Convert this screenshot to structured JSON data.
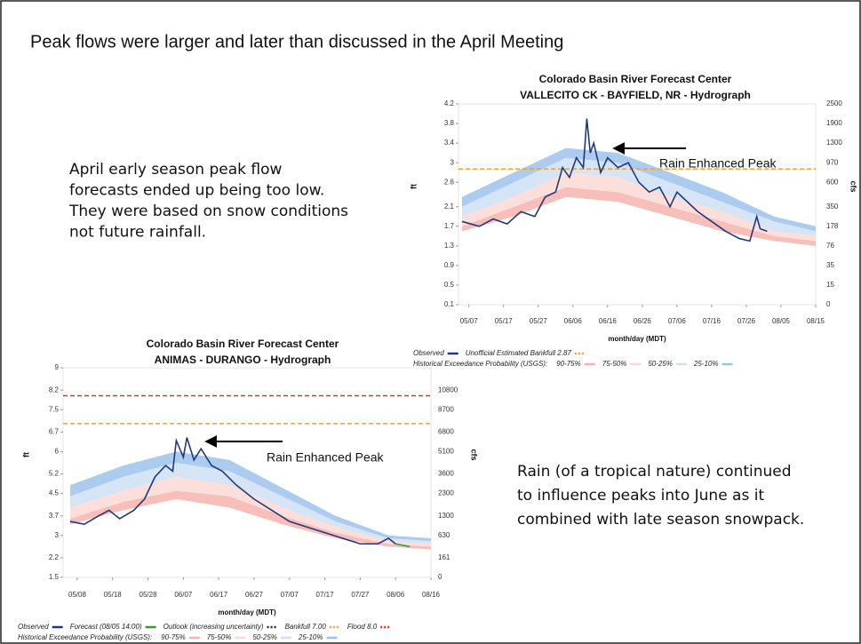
{
  "slide": {
    "title": "Peak flows were larger and later than discussed in the April Meeting",
    "left_note": [
      "April early season peak flow",
      "forecasts ended up being too low.",
      "They were based on snow conditions",
      "not future rainfall."
    ],
    "right_note": [
      "Rain (of a tropical nature) continued",
      "to influence peaks into June as it",
      "combined with late season snowpack."
    ]
  },
  "chart_data": [
    {
      "type": "line",
      "title": [
        "Colorado Basin River Forecast Center",
        "VALLECITO CK - BAYFIELD, NR - Hydrograph"
      ],
      "xlabel": "month/day (MDT)",
      "ylabel": "ft",
      "y2label": "cfs",
      "annotation": "Rain Enhanced Peak",
      "xlim": [
        "05/04",
        "08/15"
      ],
      "xticks": [
        "05/07",
        "05/17",
        "05/27",
        "06/06",
        "06/16",
        "06/26",
        "07/06",
        "07/16",
        "07/26",
        "08/05",
        "08/15"
      ],
      "ylim": [
        0.1,
        4.2
      ],
      "yticks": [
        4.2,
        3.8,
        3.4,
        3.0,
        2.6,
        2.1,
        1.7,
        1.3,
        0.9,
        0.5,
        0.1
      ],
      "y2ticks": [
        2500,
        1900,
        1300,
        970,
        600,
        350,
        178,
        76,
        35,
        15,
        0
      ],
      "series": [
        {
          "name": "Observed",
          "color": "#1f3a7a",
          "x": [
            "05/05",
            "05/10",
            "05/14",
            "05/18",
            "05/22",
            "05/26",
            "05/29",
            "06/01",
            "06/03",
            "06/05",
            "06/07",
            "06/09",
            "06/10",
            "06/11",
            "06/12",
            "06/14",
            "06/16",
            "06/19",
            "06/22",
            "06/25",
            "06/28",
            "07/01",
            "07/04",
            "07/06",
            "07/09",
            "07/12",
            "07/16",
            "07/20",
            "07/24",
            "07/27",
            "07/29",
            "07/30",
            "08/01"
          ],
          "values": [
            1.8,
            1.7,
            1.85,
            1.75,
            2.0,
            1.9,
            2.3,
            2.4,
            2.9,
            2.7,
            3.1,
            2.9,
            3.9,
            3.2,
            3.4,
            2.8,
            3.1,
            2.9,
            3.0,
            2.6,
            2.4,
            2.5,
            2.1,
            2.4,
            2.2,
            2.0,
            1.8,
            1.6,
            1.45,
            1.4,
            1.9,
            1.65,
            1.6
          ]
        }
      ],
      "thresholds": [
        {
          "name": "Unofficial Estimated Bankfull 2.87",
          "value": 2.87,
          "color": "#f0a030"
        }
      ],
      "legend_title": "Historical Exceedance Probability (USGS):",
      "bands_x": [
        "05/05",
        "05/20",
        "06/04",
        "06/19",
        "07/04",
        "07/19",
        "08/03",
        "08/15"
      ],
      "bands": [
        {
          "name": "90-75%",
          "color": "#f6b3ae",
          "low": [
            1.6,
            1.9,
            2.3,
            2.2,
            1.9,
            1.6,
            1.4,
            1.3
          ],
          "high": [
            1.7,
            2.1,
            2.5,
            2.4,
            2.1,
            1.8,
            1.5,
            1.4
          ]
        },
        {
          "name": "75-50%",
          "color": "#fbd9d4",
          "low": [
            1.7,
            2.1,
            2.5,
            2.4,
            2.1,
            1.8,
            1.5,
            1.4
          ],
          "high": [
            1.9,
            2.3,
            2.8,
            2.7,
            2.3,
            2.0,
            1.6,
            1.5
          ]
        },
        {
          "name": "50-25%",
          "color": "#cfe0f5",
          "low": [
            1.9,
            2.3,
            2.8,
            2.7,
            2.3,
            2.0,
            1.6,
            1.5
          ],
          "high": [
            2.1,
            2.6,
            3.1,
            3.0,
            2.6,
            2.2,
            1.8,
            1.6
          ]
        },
        {
          "name": "25-10%",
          "color": "#9cc2ec",
          "low": [
            2.1,
            2.6,
            3.1,
            3.0,
            2.6,
            2.2,
            1.8,
            1.6
          ],
          "high": [
            2.3,
            2.8,
            3.3,
            3.2,
            2.8,
            2.4,
            1.9,
            1.7
          ]
        }
      ]
    },
    {
      "type": "line",
      "title": [
        "Colorado Basin River Forecast Center",
        "ANIMAS - DURANGO - Hydrograph"
      ],
      "xlabel": "month/day (MDT)",
      "ylabel": "ft",
      "y2label": "cfs",
      "annotation": "Rain Enhanced Peak",
      "xlim": [
        "05/04",
        "08/16"
      ],
      "xticks": [
        "05/08",
        "05/18",
        "05/28",
        "06/07",
        "06/17",
        "06/27",
        "07/07",
        "07/17",
        "07/27",
        "08/06",
        "08/16"
      ],
      "ylim": [
        1.5,
        9.0
      ],
      "yticks": [
        9.0,
        8.2,
        7.5,
        6.7,
        6.0,
        5.2,
        4.5,
        3.7,
        3.0,
        2.2,
        1.5
      ],
      "y2ticks": [
        10800,
        8700,
        6800,
        5100,
        3600,
        2300,
        1300,
        630,
        161,
        0
      ],
      "series": [
        {
          "name": "Observed",
          "color": "#1f3a7a",
          "x": [
            "05/06",
            "05/10",
            "05/14",
            "05/17",
            "05/20",
            "05/24",
            "05/27",
            "05/30",
            "06/02",
            "06/04",
            "06/05",
            "06/07",
            "06/08",
            "06/10",
            "06/12",
            "06/15",
            "06/18",
            "06/22",
            "06/27",
            "07/02",
            "07/07",
            "07/12",
            "07/17",
            "07/22",
            "07/27",
            "08/01",
            "08/04",
            "08/06"
          ],
          "values": [
            3.5,
            3.4,
            3.7,
            3.9,
            3.6,
            3.9,
            4.3,
            5.1,
            5.5,
            5.3,
            6.4,
            5.8,
            6.5,
            5.7,
            6.1,
            5.5,
            5.3,
            4.8,
            4.3,
            3.9,
            3.5,
            3.3,
            3.1,
            2.9,
            2.7,
            2.7,
            2.9,
            2.7
          ]
        },
        {
          "name": "Forecast (08/05 14:00)",
          "color": "#2e9a3a",
          "x": [
            "08/06",
            "08/10"
          ],
          "values": [
            2.7,
            2.6
          ]
        },
        {
          "name": "Outlook (increasing uncertainty)",
          "color": "#222222",
          "dash": true,
          "x": [],
          "values": []
        }
      ],
      "thresholds": [
        {
          "name": "Bankfull 7.00",
          "value": 7.0,
          "color": "#f0a030"
        },
        {
          "name": "Flood 8.0",
          "value": 8.0,
          "color": "#e03030"
        }
      ],
      "legend_title": "Historical Exceedance Probability (USGS):",
      "bands_x": [
        "05/06",
        "05/21",
        "06/05",
        "06/20",
        "07/05",
        "07/20",
        "08/04",
        "08/16"
      ],
      "bands": [
        {
          "name": "90-75%",
          "color": "#f6b3ae",
          "low": [
            3.4,
            3.9,
            4.3,
            4.0,
            3.4,
            2.9,
            2.6,
            2.5
          ],
          "high": [
            3.6,
            4.2,
            4.6,
            4.4,
            3.7,
            3.1,
            2.7,
            2.6
          ]
        },
        {
          "name": "75-50%",
          "color": "#fbd9d4",
          "low": [
            3.6,
            4.2,
            4.6,
            4.4,
            3.7,
            3.1,
            2.7,
            2.6
          ],
          "high": [
            4.0,
            4.6,
            5.1,
            4.8,
            4.0,
            3.3,
            2.8,
            2.7
          ]
        },
        {
          "name": "50-25%",
          "color": "#cfe0f5",
          "low": [
            4.0,
            4.6,
            5.1,
            4.8,
            4.0,
            3.3,
            2.8,
            2.7
          ],
          "high": [
            4.4,
            5.1,
            5.6,
            5.3,
            4.4,
            3.5,
            2.9,
            2.8
          ]
        },
        {
          "name": "25-10%",
          "color": "#9cc2ec",
          "low": [
            4.4,
            5.1,
            5.6,
            5.3,
            4.4,
            3.5,
            2.9,
            2.8
          ],
          "high": [
            4.8,
            5.5,
            6.0,
            5.7,
            4.7,
            3.7,
            3.0,
            2.9
          ]
        }
      ]
    }
  ]
}
